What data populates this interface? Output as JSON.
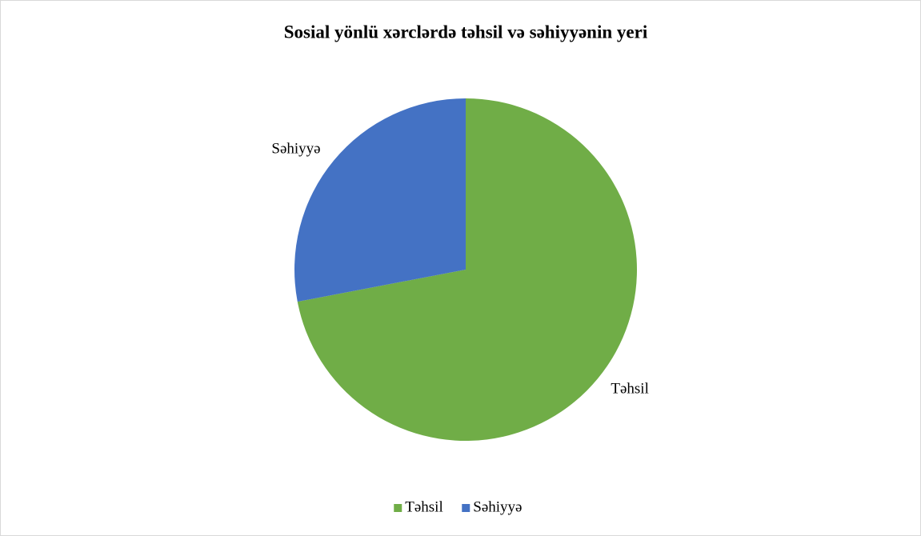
{
  "chart_data": {
    "type": "pie",
    "title": "Sosial yönlü xərclərdə təhsil və səhiyyənin yeri",
    "categories": [
      "Təhsil",
      "Səhiyyə"
    ],
    "values": [
      72,
      28
    ],
    "colors": [
      "#70ad47",
      "#4472c4"
    ],
    "legend": "bottom"
  }
}
